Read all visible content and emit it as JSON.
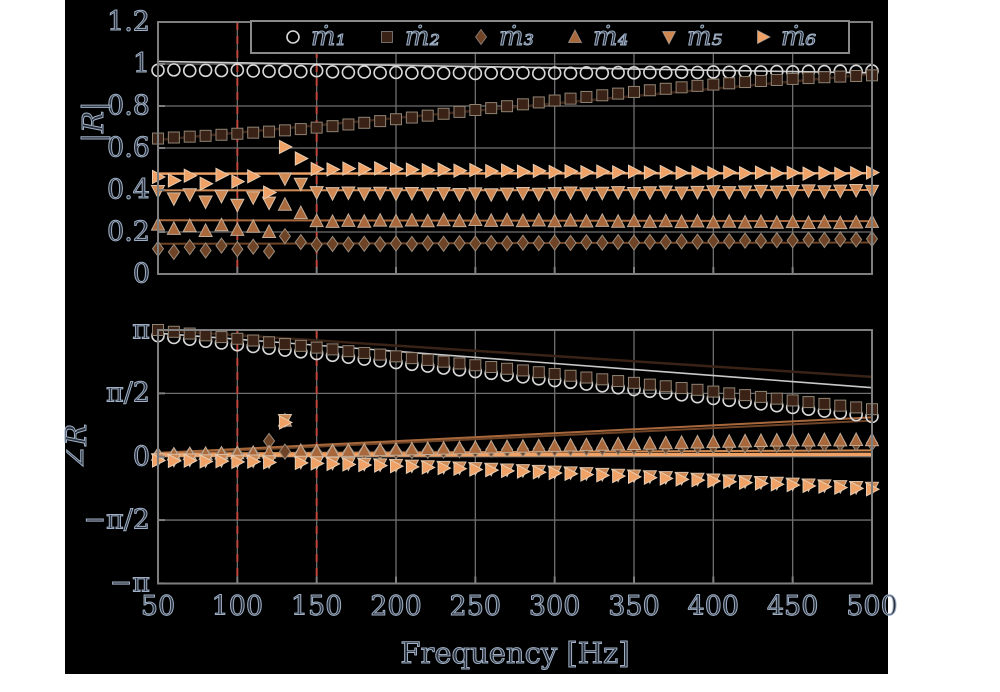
{
  "figure": {
    "page_background": "#ffffff",
    "panel_background": "#000000",
    "frame_color": "#7f7f7f",
    "grid_color": "#6f6f6f",
    "text_fill": "#2b313c",
    "text_outline": "#9fb0c6",
    "highlight_color": "#c0453a"
  },
  "legend": {
    "items": [
      {
        "label": "ṁ₁",
        "marker": "circle",
        "color": "none",
        "edge": "#d9d9d9"
      },
      {
        "label": "ṁ₂",
        "marker": "square",
        "color": "#3a2316",
        "edge": "#8f8374"
      },
      {
        "label": "ṁ₃",
        "marker": "diamond",
        "color": "#6f4426",
        "edge": "#9b8c7c"
      },
      {
        "label": "ṁ₄",
        "marker": "triangle-up",
        "color": "#a8683c",
        "edge": "#c2ac97"
      },
      {
        "label": "ṁ₅",
        "marker": "triangle-down",
        "color": "#cf8852",
        "edge": "#d9c0a8"
      },
      {
        "label": "ṁ₆",
        "marker": "triangle-right",
        "color": "#f0a266",
        "edge": "#e8cdb2"
      }
    ]
  },
  "axes": {
    "xlabel": "Frequency [Hz]",
    "top": {
      "ylabel": "|R|"
    },
    "bottom": {
      "ylabel": "∠R"
    }
  },
  "chart_data": [
    {
      "type": "scatter",
      "title": "",
      "xlabel": "Frequency [Hz]",
      "ylabel": "|R|",
      "xlim": [
        50,
        500
      ],
      "ylim": [
        0,
        1.2
      ],
      "grid": true,
      "legend_position": "top-center",
      "xticks": [
        50,
        100,
        150,
        200,
        250,
        300,
        350,
        400,
        450,
        500
      ],
      "yticks": [
        {
          "v": 0,
          "label": "0"
        },
        {
          "v": 0.2,
          "label": "0.2"
        },
        {
          "v": 0.4,
          "label": "0.4"
        },
        {
          "v": 0.6,
          "label": "0.6"
        },
        {
          "v": 0.8,
          "label": "0.8"
        },
        {
          "v": 1,
          "label": "1"
        },
        {
          "v": 1.2,
          "label": "1.2"
        }
      ],
      "vlines": [
        100,
        150
      ],
      "x": [
        50,
        60,
        70,
        80,
        90,
        100,
        110,
        120,
        130,
        140,
        150,
        160,
        170,
        180,
        190,
        200,
        210,
        220,
        230,
        240,
        250,
        260,
        270,
        280,
        290,
        300,
        310,
        320,
        330,
        340,
        350,
        360,
        370,
        380,
        390,
        400,
        410,
        420,
        430,
        440,
        450,
        460,
        470,
        480,
        490,
        500
      ],
      "series": [
        {
          "name": "ṁ₁",
          "marker": "circle",
          "color": "none",
          "edge": "#d9d9d9",
          "line_color": "#c9c9c9",
          "line_width": 1.6,
          "fit_line": [
            [
              50,
              1.012
            ],
            [
              500,
              0.958
            ]
          ],
          "values": [
            0.97,
            0.972,
            0.968,
            0.97,
            0.969,
            0.971,
            0.967,
            0.965,
            0.966,
            0.964,
            0.968,
            0.963,
            0.96,
            0.962,
            0.958,
            0.96,
            0.957,
            0.959,
            0.956,
            0.958,
            0.955,
            0.957,
            0.956,
            0.958,
            0.955,
            0.957,
            0.956,
            0.958,
            0.957,
            0.959,
            0.958,
            0.96,
            0.959,
            0.961,
            0.96,
            0.962,
            0.961,
            0.963,
            0.962,
            0.964,
            0.963,
            0.965,
            0.964,
            0.966,
            0.965,
            0.967
          ]
        },
        {
          "name": "ṁ₂",
          "marker": "square",
          "color": "#3a2316",
          "edge": "#8f8374",
          "line_color": "#3a2316",
          "line_width": 2.5,
          "fit_line": [
            [
              50,
              0.638
            ],
            [
              500,
              0.952
            ]
          ],
          "values": [
            0.645,
            0.65,
            0.654,
            0.658,
            0.663,
            0.668,
            0.673,
            0.678,
            0.684,
            0.69,
            0.697,
            0.704,
            0.712,
            0.72,
            0.728,
            0.737,
            0.745,
            0.754,
            0.763,
            0.772,
            0.781,
            0.79,
            0.799,
            0.808,
            0.817,
            0.826,
            0.835,
            0.843,
            0.851,
            0.859,
            0.867,
            0.875,
            0.882,
            0.889,
            0.896,
            0.902,
            0.908,
            0.914,
            0.919,
            0.924,
            0.929,
            0.933,
            0.937,
            0.94,
            0.943,
            0.946
          ]
        },
        {
          "name": "ṁ₃",
          "marker": "diamond",
          "color": "#6f4426",
          "edge": "#9b8c7c",
          "line_color": "#6f4426",
          "line_width": 2,
          "fit_line": [
            [
              50,
              0.144
            ],
            [
              500,
              0.15
            ]
          ],
          "values": [
            0.12,
            0.105,
            0.128,
            0.112,
            0.135,
            0.118,
            0.13,
            0.108,
            0.18,
            0.152,
            0.14,
            0.143,
            0.141,
            0.144,
            0.142,
            0.145,
            0.143,
            0.146,
            0.144,
            0.147,
            0.145,
            0.148,
            0.146,
            0.149,
            0.147,
            0.15,
            0.148,
            0.151,
            0.149,
            0.152,
            0.15,
            0.153,
            0.152,
            0.155,
            0.154,
            0.157,
            0.156,
            0.159,
            0.158,
            0.161,
            0.16,
            0.163,
            0.162,
            0.165,
            0.164,
            0.167
          ]
        },
        {
          "name": "ṁ₄",
          "marker": "triangle-up",
          "color": "#a8683c",
          "edge": "#c2ac97",
          "line_color": "#a8683c",
          "line_width": 2,
          "fit_line": [
            [
              50,
              0.256
            ],
            [
              500,
              0.252
            ]
          ],
          "values": [
            0.235,
            0.215,
            0.228,
            0.205,
            0.232,
            0.21,
            0.225,
            0.2,
            0.33,
            0.29,
            0.252,
            0.248,
            0.253,
            0.249,
            0.254,
            0.25,
            0.255,
            0.251,
            0.256,
            0.252,
            0.257,
            0.253,
            0.256,
            0.252,
            0.255,
            0.251,
            0.254,
            0.25,
            0.253,
            0.249,
            0.252,
            0.248,
            0.251,
            0.247,
            0.25,
            0.246,
            0.249,
            0.245,
            0.248,
            0.244,
            0.247,
            0.243,
            0.246,
            0.242,
            0.245,
            0.248
          ]
        },
        {
          "name": "ṁ₅",
          "marker": "triangle-down",
          "color": "#cf8852",
          "edge": "#d9c0a8",
          "line_color": "#cf8852",
          "line_width": 2,
          "fit_line": [
            [
              50,
              0.398
            ],
            [
              500,
              0.4
            ]
          ],
          "values": [
            0.395,
            0.36,
            0.38,
            0.345,
            0.372,
            0.33,
            0.365,
            0.34,
            0.455,
            0.43,
            0.39,
            0.385,
            0.388,
            0.384,
            0.387,
            0.383,
            0.386,
            0.382,
            0.385,
            0.381,
            0.384,
            0.38,
            0.383,
            0.386,
            0.382,
            0.385,
            0.388,
            0.384,
            0.387,
            0.39,
            0.386,
            0.389,
            0.392,
            0.388,
            0.391,
            0.394,
            0.39,
            0.393,
            0.396,
            0.392,
            0.395,
            0.398,
            0.394,
            0.397,
            0.4,
            0.396
          ]
        },
        {
          "name": "ṁ₆",
          "marker": "triangle-right",
          "color": "#f0a266",
          "edge": "#e8cdb2",
          "line_color": "#f0a266",
          "line_width": 2.4,
          "fit_line": [
            [
              50,
              0.478
            ],
            [
              500,
              0.48
            ]
          ],
          "values": [
            0.462,
            0.445,
            0.468,
            0.43,
            0.472,
            0.44,
            0.465,
            0.388,
            0.605,
            0.55,
            0.5,
            0.498,
            0.502,
            0.499,
            0.503,
            0.5,
            0.497,
            0.494,
            0.497,
            0.492,
            0.495,
            0.49,
            0.493,
            0.488,
            0.491,
            0.486,
            0.489,
            0.485,
            0.488,
            0.484,
            0.487,
            0.483,
            0.486,
            0.482,
            0.485,
            0.481,
            0.484,
            0.48,
            0.483,
            0.479,
            0.482,
            0.478,
            0.481,
            0.477,
            0.48,
            0.483
          ]
        }
      ]
    },
    {
      "type": "scatter",
      "title": "",
      "xlabel": "Frequency [Hz]",
      "ylabel": "∠R",
      "values_unit": "radians divided by pi",
      "xlim": [
        50,
        500
      ],
      "ylim": [
        -1,
        1
      ],
      "grid": true,
      "xticks": [
        50,
        100,
        150,
        200,
        250,
        300,
        350,
        400,
        450,
        500
      ],
      "yticks": [
        {
          "v": -1,
          "label": "−π"
        },
        {
          "v": -0.5,
          "label": "−π/2"
        },
        {
          "v": 0,
          "label": "0"
        },
        {
          "v": 0.5,
          "label": "π/2"
        },
        {
          "v": 1,
          "label": "π"
        }
      ],
      "vlines": [
        100,
        150
      ],
      "x": [
        50,
        60,
        70,
        80,
        90,
        100,
        110,
        120,
        130,
        140,
        150,
        160,
        170,
        180,
        190,
        200,
        210,
        220,
        230,
        240,
        250,
        260,
        270,
        280,
        290,
        300,
        310,
        320,
        330,
        340,
        350,
        360,
        370,
        380,
        390,
        400,
        410,
        420,
        430,
        440,
        450,
        460,
        470,
        480,
        490,
        500
      ],
      "series": [
        {
          "name": "ṁ₁",
          "marker": "circle",
          "color": "none",
          "edge": "#d9d9d9",
          "line_color": "#c9c9c9",
          "line_width": 1.6,
          "fit_line": [
            [
              50,
              0.975
            ],
            [
              500,
              0.545
            ]
          ],
          "values": [
            0.955,
            0.941,
            0.927,
            0.912,
            0.898,
            0.884,
            0.87,
            0.856,
            0.842,
            0.828,
            0.814,
            0.8,
            0.785,
            0.771,
            0.757,
            0.743,
            0.729,
            0.715,
            0.7,
            0.686,
            0.672,
            0.658,
            0.644,
            0.63,
            0.615,
            0.601,
            0.587,
            0.573,
            0.559,
            0.545,
            0.53,
            0.516,
            0.502,
            0.488,
            0.474,
            0.46,
            0.445,
            0.431,
            0.417,
            0.403,
            0.389,
            0.375,
            0.36,
            0.346,
            0.332,
            0.318
          ]
        },
        {
          "name": "ṁ₂",
          "marker": "square",
          "color": "#3a2316",
          "edge": "#8f8374",
          "line_color": "#3a2316",
          "line_width": 2.5,
          "fit_line": [
            [
              50,
              1.0
            ],
            [
              500,
              0.63
            ]
          ],
          "values": [
            1.0,
            0.986,
            0.972,
            0.958,
            0.944,
            0.931,
            0.917,
            0.903,
            0.889,
            0.875,
            0.861,
            0.847,
            0.833,
            0.819,
            0.806,
            0.792,
            0.778,
            0.764,
            0.75,
            0.736,
            0.722,
            0.708,
            0.694,
            0.681,
            0.667,
            0.653,
            0.639,
            0.625,
            0.611,
            0.597,
            0.583,
            0.569,
            0.556,
            0.542,
            0.528,
            0.514,
            0.5,
            0.486,
            0.472,
            0.458,
            0.444,
            0.431,
            0.417,
            0.403,
            0.389,
            0.375
          ]
        },
        {
          "name": "ṁ₃",
          "marker": "diamond",
          "color": "#6f4426",
          "edge": "#9b8c7c",
          "line_color": "#6f4426",
          "line_width": 2,
          "fit_line": [
            [
              50,
              0.02
            ],
            [
              500,
              0.285
            ]
          ],
          "values": [
            0.01,
            0.012,
            0.015,
            0.014,
            0.018,
            0.02,
            0.022,
            0.124,
            0.04,
            0.03,
            0.032,
            0.034,
            0.036,
            0.038,
            0.041,
            0.043,
            0.045,
            0.047,
            0.049,
            0.052,
            0.054,
            0.056,
            0.058,
            0.06,
            0.063,
            0.065,
            0.067,
            0.069,
            0.071,
            0.074,
            0.076,
            0.078,
            0.08,
            0.082,
            0.085,
            0.087,
            0.089,
            0.091,
            0.093,
            0.096,
            0.098,
            0.1,
            0.102,
            0.104,
            0.106,
            0.108
          ]
        },
        {
          "name": "ṁ₄",
          "marker": "triangle-up",
          "color": "#a8683c",
          "edge": "#c2ac97",
          "line_color": "#a8683c",
          "line_width": 2,
          "fit_line": [
            [
              50,
              0.03
            ],
            [
              500,
              0.31
            ]
          ],
          "values": [
            0.015,
            0.017,
            0.02,
            0.022,
            0.025,
            0.027,
            0.03,
            0.032,
            0.285,
            0.045,
            0.04,
            0.043,
            0.046,
            0.049,
            0.052,
            0.055,
            0.058,
            0.061,
            0.064,
            0.067,
            0.07,
            0.073,
            0.076,
            0.079,
            0.082,
            0.085,
            0.088,
            0.091,
            0.094,
            0.097,
            0.1,
            0.103,
            0.106,
            0.109,
            0.112,
            0.115,
            0.118,
            0.121,
            0.124,
            0.127,
            0.13,
            0.128,
            0.131,
            0.129,
            0.132,
            0.13
          ]
        },
        {
          "name": "ṁ₅",
          "marker": "triangle-down",
          "color": "#cf8852",
          "edge": "#d9c0a8",
          "line_color": "#cf8852",
          "line_width": 2,
          "fit_line": [
            [
              50,
              0.025
            ],
            [
              500,
              0.05
            ]
          ],
          "values": [
            -0.02,
            -0.024,
            -0.022,
            -0.028,
            -0.026,
            -0.032,
            -0.03,
            -0.036,
            0.29,
            -0.04,
            -0.044,
            -0.048,
            -0.052,
            -0.056,
            -0.061,
            -0.065,
            -0.07,
            -0.075,
            -0.08,
            -0.085,
            -0.09,
            -0.095,
            -0.101,
            -0.106,
            -0.112,
            -0.118,
            -0.124,
            -0.13,
            -0.136,
            -0.142,
            -0.148,
            -0.154,
            -0.161,
            -0.167,
            -0.174,
            -0.18,
            -0.187,
            -0.193,
            -0.2,
            -0.206,
            -0.213,
            -0.219,
            -0.226,
            -0.232,
            -0.239,
            -0.245
          ]
        },
        {
          "name": "ṁ₆",
          "marker": "triangle-right",
          "color": "#f0a266",
          "edge": "#e8cdb2",
          "line_color": "#f0a266",
          "line_width": 3.5,
          "fit_line": [
            [
              50,
              0.012
            ],
            [
              500,
              0.018
            ]
          ],
          "values": [
            -0.03,
            -0.033,
            -0.031,
            -0.037,
            -0.035,
            -0.041,
            -0.039,
            -0.045,
            0.27,
            -0.049,
            -0.053,
            -0.057,
            -0.061,
            -0.066,
            -0.07,
            -0.075,
            -0.08,
            -0.085,
            -0.09,
            -0.095,
            -0.101,
            -0.106,
            -0.112,
            -0.117,
            -0.123,
            -0.129,
            -0.135,
            -0.141,
            -0.147,
            -0.153,
            -0.159,
            -0.166,
            -0.172,
            -0.179,
            -0.185,
            -0.192,
            -0.198,
            -0.205,
            -0.211,
            -0.218,
            -0.224,
            -0.231,
            -0.237,
            -0.244,
            -0.25,
            -0.257
          ]
        }
      ]
    }
  ]
}
